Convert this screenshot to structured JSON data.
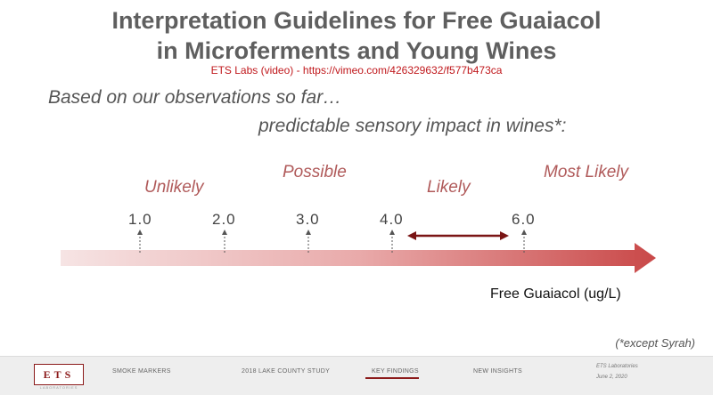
{
  "slide": {
    "title_line1": "Interpretation Guidelines for Free Guaiacol",
    "title_line2": "in Microferments and Young Wines",
    "source": "ETS Labs (video) -  https://vimeo.com/426329632/f577b473ca",
    "headline_line1": "Based on our observations so far…",
    "headline_line2": "predictable sensory impact in wines*:",
    "footnote": "(*except Syrah)"
  },
  "scale": {
    "categories": [
      "Unlikely",
      "Possible",
      "Likely",
      "Most Likely"
    ],
    "ticks": [
      "1.0",
      "2.0",
      "3.0",
      "4.0",
      "6.0"
    ],
    "axis_label": "Free Guaiacol (ug/L)",
    "range_arrow": {
      "from": 4.0,
      "to": 6.0
    }
  },
  "footer": {
    "logo": "ETS",
    "logo_sub": "LABORATORIES",
    "nav": [
      {
        "label": "SMOKE MARKERS",
        "active": false
      },
      {
        "label": "2018 LAKE COUNTY STUDY",
        "active": false
      },
      {
        "label": "KEY FINDINGS",
        "active": true
      },
      {
        "label": "NEW INSIGHTS",
        "active": false
      }
    ],
    "org": "ETS Laboratories",
    "date": "June 2, 2020"
  },
  "colors": {
    "accent": "#8b1a1a",
    "category_text": "#b05a5a",
    "bar_start": "#f6e4e4",
    "bar_end": "#c94848"
  }
}
